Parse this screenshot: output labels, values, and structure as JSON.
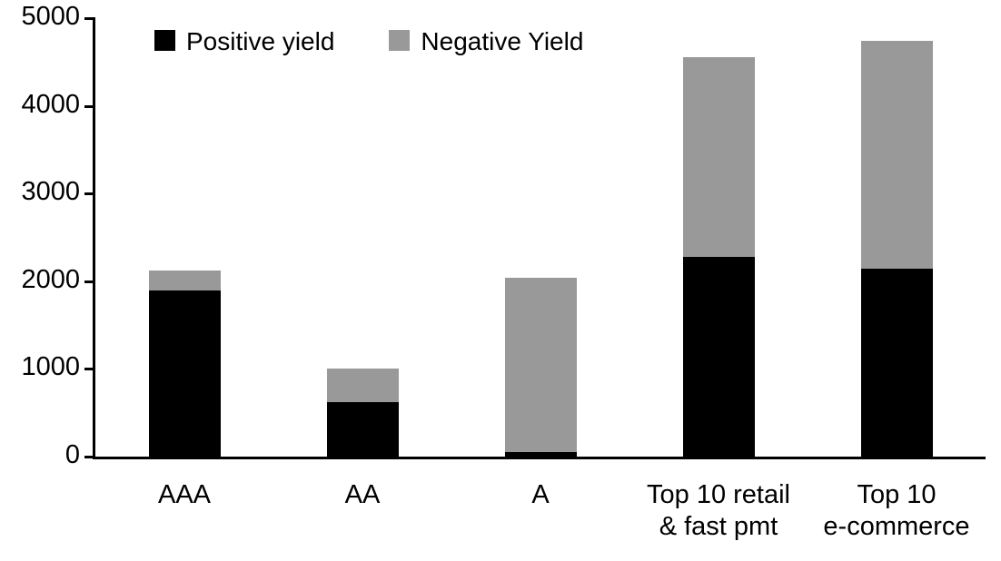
{
  "chart_data": {
    "type": "bar",
    "stacked": true,
    "title": "",
    "xlabel": "",
    "ylabel": "",
    "categories": [
      "AAA",
      "AA",
      "A",
      "Top 10 retail & fast pmt",
      "Top 10 e-commerce"
    ],
    "category_label_lines": [
      [
        "AAA"
      ],
      [
        "AA"
      ],
      [
        "A"
      ],
      [
        "Top 10 retail",
        "& fast pmt"
      ],
      [
        "Top 10",
        "e-commerce"
      ]
    ],
    "series": [
      {
        "name": "Positive yield",
        "color": "#000000",
        "values": [
          1890,
          620,
          50,
          2280,
          2140
        ]
      },
      {
        "name": "Negative Yield",
        "color": "#999999",
        "values": [
          230,
          380,
          1985,
          2270,
          2600
        ]
      }
    ],
    "stack_totals": [
      2120,
      1000,
      2035,
      4550,
      4740
    ],
    "ylim": [
      0,
      5000
    ],
    "yticks": [
      0,
      1000,
      2000,
      3000,
      4000,
      5000
    ],
    "grid": false,
    "legend_position": "top-left",
    "axis_color": "#000000",
    "background_color": "#ffffff"
  },
  "legend": {
    "items": [
      {
        "label": "Positive yield",
        "color": "#000000"
      },
      {
        "label": "Negative Yield",
        "color": "#999999"
      }
    ]
  }
}
